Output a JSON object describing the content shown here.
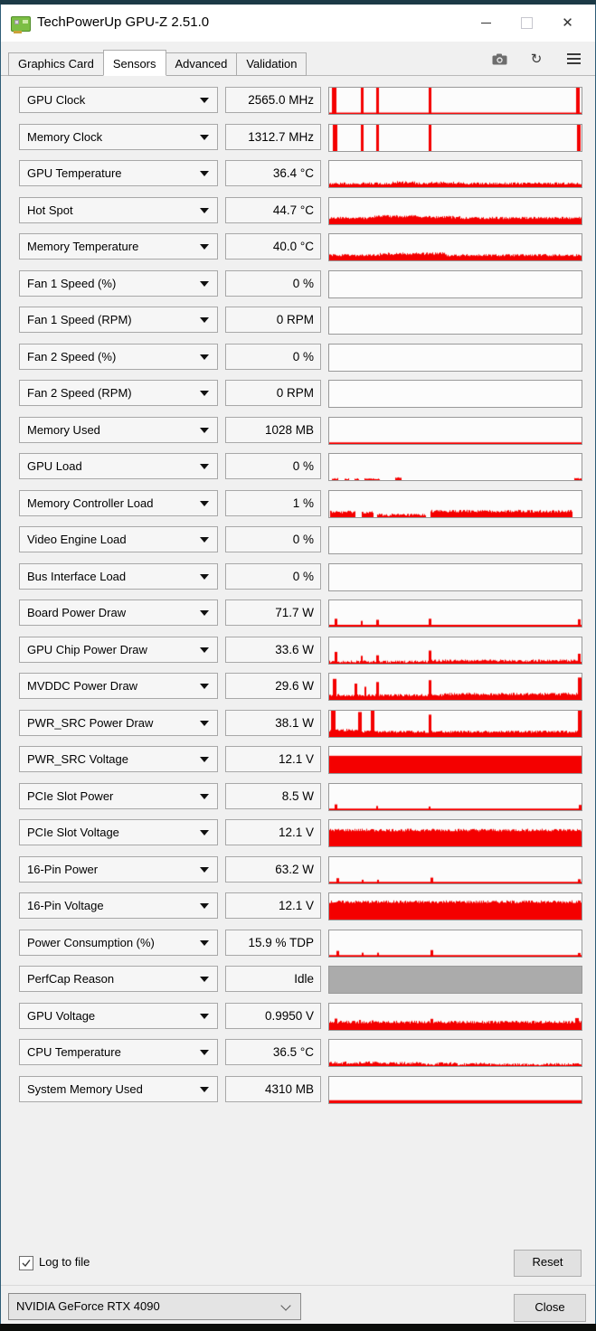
{
  "window": {
    "title": "TechPowerUp GPU-Z 2.51.0",
    "controls": {
      "minimize": "minimize",
      "maximize": "maximize",
      "close": "close"
    }
  },
  "tabs": {
    "items": [
      {
        "label": "Graphics Card",
        "active": false
      },
      {
        "label": "Sensors",
        "active": true
      },
      {
        "label": "Advanced",
        "active": false
      },
      {
        "label": "Validation",
        "active": false
      }
    ],
    "toolbar_icons": [
      "camera-icon",
      "refresh-icon",
      "menu-icon"
    ]
  },
  "colors": {
    "graph_red": "#F40000",
    "graph_gray": "#ABABAB",
    "box_bg": "#F6F6F6",
    "graph_bg": "#FCFCFC",
    "window_bg": "#F0F0F0"
  },
  "sensors": {
    "rows": [
      {
        "label": "GPU Clock",
        "value": "2565.0 MHz",
        "graph": {
          "kind": "plot",
          "base": 0.05,
          "spikes": [
            [
              0.012,
              1,
              5
            ],
            [
              0.125,
              1,
              3
            ],
            [
              0.185,
              1,
              3
            ],
            [
              0.395,
              1,
              3
            ],
            [
              0.978,
              1,
              4
            ]
          ]
        }
      },
      {
        "label": "Memory Clock",
        "value": "1312.7 MHz",
        "graph": {
          "kind": "plot",
          "spikes": [
            [
              0.015,
              1,
              5
            ],
            [
              0.125,
              1,
              3
            ],
            [
              0.185,
              1,
              3
            ],
            [
              0.395,
              1,
              3
            ],
            [
              0.982,
              1,
              4
            ]
          ]
        }
      },
      {
        "label": "GPU Temperature",
        "value": "36.4 °C",
        "graph": {
          "kind": "plot",
          "base": 0.14,
          "noise": true,
          "segments": [
            [
              0.25,
              0.34,
              0.18
            ],
            [
              0.4,
              0.52,
              0.16
            ]
          ]
        }
      },
      {
        "label": "Hot Spot",
        "value": "44.7 °C",
        "graph": {
          "kind": "plot",
          "base": 0.24,
          "noise": true,
          "segments": [
            [
              0.18,
              0.36,
              0.3
            ],
            [
              0.36,
              0.52,
              0.27
            ]
          ]
        }
      },
      {
        "label": "Memory Temperature",
        "value": "40.0 °C",
        "graph": {
          "kind": "plot",
          "base": 0.2,
          "noise": true,
          "segments": [
            [
              0.2,
              0.46,
              0.26
            ]
          ]
        }
      },
      {
        "label": "Fan 1 Speed (%)",
        "value": "0 %",
        "graph": {
          "kind": "empty"
        }
      },
      {
        "label": "Fan 1 Speed (RPM)",
        "value": "0 RPM",
        "graph": {
          "kind": "empty"
        }
      },
      {
        "label": "Fan 2 Speed (%)",
        "value": "0 %",
        "graph": {
          "kind": "empty"
        }
      },
      {
        "label": "Fan 2 Speed (RPM)",
        "value": "0 RPM",
        "graph": {
          "kind": "empty"
        }
      },
      {
        "label": "Memory Used",
        "value": "1028 MB",
        "graph": {
          "kind": "plot",
          "base": 0.06
        }
      },
      {
        "label": "GPU Load",
        "value": "0 %",
        "graph": {
          "kind": "plot",
          "segments": [
            [
              0.01,
              0.035,
              0.06
            ],
            [
              0.06,
              0.08,
              0.05
            ],
            [
              0.1,
              0.12,
              0.05
            ],
            [
              0.14,
              0.2,
              0.05
            ],
            [
              0.26,
              0.285,
              0.09
            ],
            [
              0.97,
              1,
              0.06
            ]
          ]
        }
      },
      {
        "label": "Memory Controller Load",
        "value": "1 %",
        "graph": {
          "kind": "plot",
          "noise": true,
          "segments": [
            [
              0.005,
              0.105,
              0.2
            ],
            [
              0.13,
              0.175,
              0.18
            ],
            [
              0.19,
              0.385,
              0.09
            ],
            [
              0.4,
              0.965,
              0.23
            ]
          ]
        }
      },
      {
        "label": "Video Engine Load",
        "value": "0 %",
        "graph": {
          "kind": "empty"
        }
      },
      {
        "label": "Bus Interface Load",
        "value": "0 %",
        "graph": {
          "kind": "empty"
        }
      },
      {
        "label": "Board Power Draw",
        "value": "71.7 W",
        "graph": {
          "kind": "plot",
          "base": 0.07,
          "spikes": [
            [
              0.02,
              0.3,
              3
            ],
            [
              0.125,
              0.22,
              2
            ],
            [
              0.185,
              0.26,
              3
            ],
            [
              0.395,
              0.3,
              3
            ],
            [
              0.985,
              0.28,
              3
            ]
          ]
        }
      },
      {
        "label": "GPU Chip Power Draw",
        "value": "33.6 W",
        "graph": {
          "kind": "plot",
          "base": 0.08,
          "noise": true,
          "segments": [
            [
              0.4,
              1,
              0.11
            ]
          ],
          "spikes": [
            [
              0.02,
              0.45,
              3
            ],
            [
              0.125,
              0.3,
              2
            ],
            [
              0.185,
              0.32,
              3
            ],
            [
              0.395,
              0.5,
              3
            ],
            [
              0.985,
              0.38,
              3
            ]
          ]
        }
      },
      {
        "label": "MVDDC Power Draw",
        "value": "29.6 W",
        "graph": {
          "kind": "plot",
          "base": 0.18,
          "noise": true,
          "segments": [
            [
              0.45,
              1,
              0.22
            ]
          ],
          "spikes": [
            [
              0.015,
              0.8,
              4
            ],
            [
              0.1,
              0.62,
              3
            ],
            [
              0.14,
              0.5,
              2
            ],
            [
              0.185,
              0.68,
              3
            ],
            [
              0.395,
              0.75,
              3
            ],
            [
              0.985,
              0.85,
              4
            ]
          ]
        }
      },
      {
        "label": "PWR_SRC Power Draw",
        "value": "38.1 W",
        "graph": {
          "kind": "plot",
          "base": 0.2,
          "noise": true,
          "segments": [
            [
              0.0,
              0.12,
              0.26
            ]
          ],
          "spikes": [
            [
              0.008,
              1,
              5
            ],
            [
              0.115,
              0.95,
              4
            ],
            [
              0.165,
              1,
              4
            ],
            [
              0.395,
              0.85,
              3
            ],
            [
              0.99,
              1,
              4
            ]
          ]
        }
      },
      {
        "label": "PWR_SRC Voltage",
        "value": "12.1 V",
        "graph": {
          "kind": "solid",
          "level": 0.66
        }
      },
      {
        "label": "PCIe Slot Power",
        "value": "8.5 W",
        "graph": {
          "kind": "plot",
          "base": 0.06,
          "spikes": [
            [
              0.02,
              0.22,
              3
            ],
            [
              0.185,
              0.16,
              2
            ],
            [
              0.395,
              0.14,
              2
            ],
            [
              0.99,
              0.2,
              3
            ]
          ]
        }
      },
      {
        "label": "PCIe Slot Voltage",
        "value": "12.1 V",
        "graph": {
          "kind": "solid",
          "level": 0.62,
          "noise": true
        }
      },
      {
        "label": "16-Pin Power",
        "value": "63.2 W",
        "graph": {
          "kind": "plot",
          "base": 0.06,
          "spikes": [
            [
              0.03,
              0.2,
              3
            ],
            [
              0.13,
              0.14,
              2
            ],
            [
              0.19,
              0.14,
              2
            ],
            [
              0.4,
              0.22,
              3
            ],
            [
              0.985,
              0.16,
              3
            ]
          ]
        }
      },
      {
        "label": "16-Pin Voltage",
        "value": "12.1 V",
        "graph": {
          "kind": "solid",
          "level": 0.68,
          "noise": true
        }
      },
      {
        "label": "Power Consumption (%)",
        "value": "15.9 % TDP",
        "graph": {
          "kind": "plot",
          "base": 0.06,
          "spikes": [
            [
              0.03,
              0.22,
              3
            ],
            [
              0.13,
              0.15,
              2
            ],
            [
              0.19,
              0.15,
              2
            ],
            [
              0.4,
              0.25,
              3
            ],
            [
              0.985,
              0.14,
              3
            ]
          ]
        }
      },
      {
        "label": "PerfCap Reason",
        "value": "Idle",
        "graph": {
          "kind": "solid",
          "level": 1,
          "color": "gray"
        }
      },
      {
        "label": "GPU Voltage",
        "value": "0.9950 V",
        "graph": {
          "kind": "solid",
          "level": 0.3,
          "noise": true,
          "spikes": [
            [
              0.02,
              0.43,
              3
            ],
            [
              0.12,
              0.38,
              2
            ],
            [
              0.17,
              0.36,
              2
            ],
            [
              0.4,
              0.42,
              3
            ],
            [
              0.975,
              0.45,
              4
            ]
          ]
        }
      },
      {
        "label": "CPU Temperature",
        "value": "36.5 °C",
        "graph": {
          "kind": "plot",
          "base": 0.07,
          "noise": true,
          "segments": [
            [
              0.0,
              0.2,
              0.13
            ],
            [
              0.2,
              0.38,
              0.11
            ],
            [
              0.42,
              0.5,
              0.1
            ],
            [
              0.55,
              0.62,
              0.08
            ]
          ]
        }
      },
      {
        "label": "System Memory Used",
        "value": "4310 MB",
        "graph": {
          "kind": "plot",
          "base": 0.11
        }
      }
    ]
  },
  "footer": {
    "log_label": "Log to file",
    "log_checked": true,
    "reset_label": "Reset",
    "device_value": "NVIDIA GeForce RTX 4090",
    "close_label": "Close"
  }
}
